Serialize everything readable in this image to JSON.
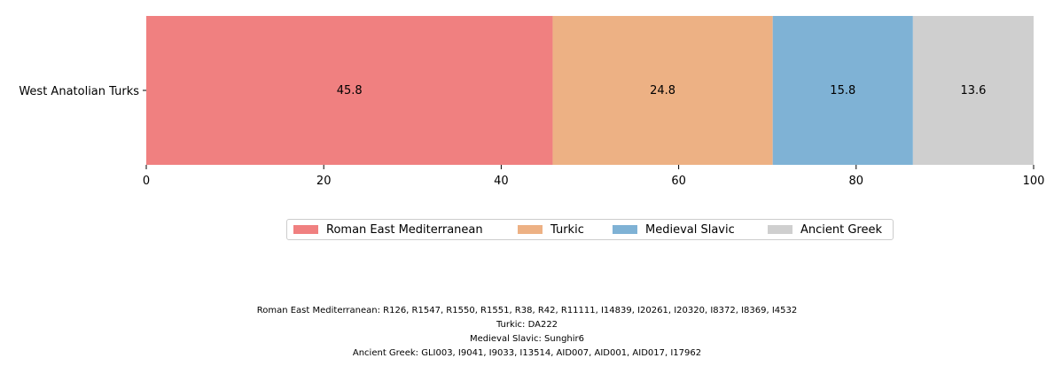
{
  "chart_data": {
    "type": "bar",
    "orientation": "horizontal",
    "stacked": true,
    "categories": [
      "West Anatolian Turks"
    ],
    "series": [
      {
        "name": "Roman East Mediterranean",
        "values": [
          45.8
        ],
        "color": "#f08080"
      },
      {
        "name": "Turkic",
        "values": [
          24.8
        ],
        "color": "#edb184"
      },
      {
        "name": "Medieval Slavic",
        "values": [
          15.8
        ],
        "color": "#7fb2d5"
      },
      {
        "name": "Ancient Greek",
        "values": [
          13.6
        ],
        "color": "#cfcfcf"
      }
    ],
    "data_labels": [
      "45.8",
      "24.8",
      "15.8",
      "13.6"
    ],
    "xlim": [
      0,
      100
    ],
    "xticks": [
      0,
      20,
      40,
      60,
      80,
      100
    ],
    "xlabel": "",
    "ylabel": "",
    "title": "",
    "grid": false,
    "legend_position": "bottom-center"
  },
  "legend": [
    {
      "label": "Roman East Mediterranean",
      "color": "#f08080"
    },
    {
      "label": "Turkic",
      "color": "#edb184"
    },
    {
      "label": "Medieval Slavic",
      "color": "#7fb2d5"
    },
    {
      "label": "Ancient Greek",
      "color": "#cfcfcf"
    }
  ],
  "footnotes": [
    "Roman East Mediterranean: R126, R1547, R1550, R1551, R38, R42, R11111, I14839, I20261, I20320, I8372, I8369, I4532",
    "Turkic: DA222",
    "Medieval Slavic: Sunghir6",
    "Ancient Greek: GLI003, I9041, I9033, I13514, AID007, AID001, AID017, I17962"
  ]
}
